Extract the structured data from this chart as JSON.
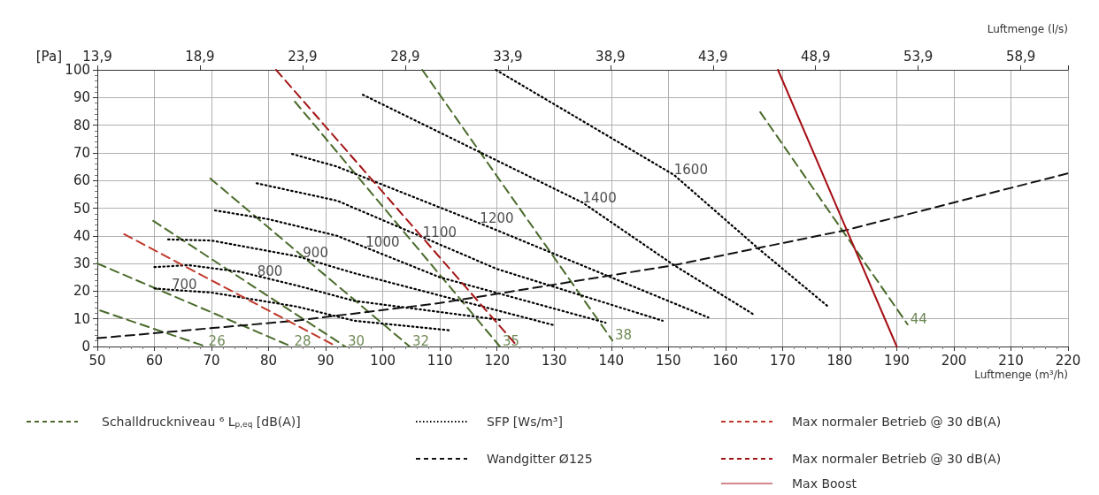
{
  "chart_data": {
    "type": "line",
    "xlabel": "Luftmenge (m³/h)",
    "ylabel": "[Pa]",
    "x2label": "Luftmenge (l/s)",
    "xlim": [
      50,
      220
    ],
    "xticks": [
      50,
      60,
      70,
      80,
      90,
      100,
      110,
      120,
      130,
      140,
      150,
      160,
      170,
      180,
      190,
      200,
      210,
      220
    ],
    "x2lim": [
      13.9,
      61.2
    ],
    "x2ticks": [
      {
        "value": 13.9,
        "label": "13,9"
      },
      {
        "value": 18.9,
        "label": "18,9"
      },
      {
        "value": 23.9,
        "label": "23,9"
      },
      {
        "value": 28.9,
        "label": "28,9"
      },
      {
        "value": 33.9,
        "label": "33,9"
      },
      {
        "value": 38.9,
        "label": "38,9"
      },
      {
        "value": 43.9,
        "label": "43,9"
      },
      {
        "value": 48.9,
        "label": "48,9"
      },
      {
        "value": 53.9,
        "label": "53,9"
      },
      {
        "value": 58.9,
        "label": "58,9"
      }
    ],
    "ylim": [
      0,
      100
    ],
    "yticks": [
      0,
      10,
      20,
      30,
      40,
      50,
      60,
      70,
      80,
      90,
      100
    ],
    "grid": true,
    "legend": "bottom",
    "series": [
      {
        "name": "Schalldruckniveau ⁶ L$_{p,eq}$ [dB(A)]",
        "color": "#4a6b2b",
        "line_style": "dashed",
        "x": [
          50.5,
          69,
          null,
          50,
          84,
          null,
          59.8,
          93.4,
          null,
          69.8,
          104.7,
          null,
          84.6,
          120.5,
          null,
          106.9,
          140.2,
          null,
          166.1,
          191.9
        ],
        "values": [
          13,
          0,
          null,
          30,
          0,
          null,
          45.4,
          0,
          null,
          60.7,
          0,
          null,
          88.5,
          0,
          null,
          100,
          2.2,
          null,
          84.7,
          8
        ]
      },
      {
        "name": "SFP [Ws/m³]",
        "color": "#000000",
        "line_style": "dotted",
        "x": [
          60,
          63,
          70,
          85,
          95,
          112,
          null,
          60,
          66,
          75,
          78,
          85,
          95,
          121,
          null,
          62.4,
          70,
          85,
          86,
          95,
          130,
          null,
          70.6,
          80,
          92,
          97,
          110,
          139,
          null,
          77.9,
          92,
          107,
          120,
          149,
          null,
          84.1,
          92,
          117,
          120,
          157,
          null,
          96.5,
          135,
          151,
          165,
          null,
          119.8,
          151,
          166,
          178
        ],
        "values": [
          21,
          20.5,
          19.5,
          14.4,
          9.3,
          5.8,
          null,
          28.7,
          29.4,
          27,
          25.5,
          22,
          16.5,
          9.5,
          null,
          38.7,
          38.3,
          32.6,
          32,
          26.5,
          7.7,
          null,
          49.2,
          46,
          40,
          35.8,
          25,
          8.6,
          null,
          59,
          52.7,
          39.5,
          28,
          9.3,
          null,
          69.6,
          65,
          44.5,
          42,
          10.5,
          null,
          91,
          52,
          29.4,
          11.5,
          null,
          100,
          62,
          35,
          14.4
        ]
      },
      {
        "name": "Wandgitter Ø125",
        "color": "#111111",
        "line_style": "dashed",
        "x": [
          50,
          84.6,
          110,
          151,
          181,
          220
        ],
        "values": [
          3,
          9.3,
          15.7,
          29.4,
          42,
          62.6
        ]
      },
      {
        "name": "Max normaler Betrieb @ 30 dB(A)",
        "color": "#c0392b",
        "line_style": "dashed",
        "x": [
          54.7,
          91.9
        ],
        "values": [
          40.6,
          0
        ]
      },
      {
        "name": "Max normaler Betrieb @ 30 dB(A)",
        "color": "#a31515",
        "line_style": "dashed",
        "x": [
          81.3,
          123.6
        ],
        "values": [
          100,
          0
        ]
      },
      {
        "name": "Max Boost",
        "color": "#a50f15",
        "line_style": "solid",
        "x": [
          169.2,
          190
        ],
        "values": [
          100,
          0
        ]
      }
    ],
    "annotations": [
      {
        "text": "26",
        "x": 69,
        "y": 0
      },
      {
        "text": "28",
        "x": 84,
        "y": 0
      },
      {
        "text": "30",
        "x": 93.4,
        "y": 0
      },
      {
        "text": "32",
        "x": 104.7,
        "y": 0
      },
      {
        "text": "35",
        "x": 120.5,
        "y": 0
      },
      {
        "text": "38",
        "x": 140.2,
        "y": 2.2
      },
      {
        "text": "44",
        "x": 191.9,
        "y": 8
      },
      {
        "text": "700",
        "x": 63,
        "y": 20.5
      },
      {
        "text": "800",
        "x": 78,
        "y": 25.5
      },
      {
        "text": "900",
        "x": 86,
        "y": 32
      },
      {
        "text": "1000",
        "x": 97,
        "y": 35.8
      },
      {
        "text": "1100",
        "x": 107,
        "y": 39.5
      },
      {
        "text": "1200",
        "x": 117,
        "y": 44.5
      },
      {
        "text": "1400",
        "x": 135,
        "y": 52
      },
      {
        "text": "1600",
        "x": 151,
        "y": 62
      }
    ]
  }
}
